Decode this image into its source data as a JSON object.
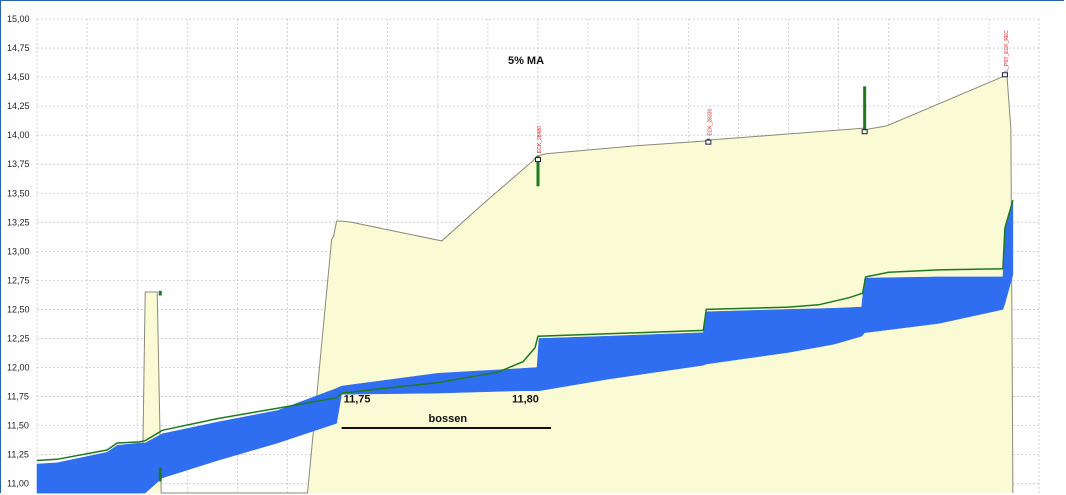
{
  "chart_data": {
    "type": "area",
    "title": "5% MA",
    "xlabel": "",
    "ylabel": "",
    "xlim": [
      0,
      100
    ],
    "ylim": [
      10.92,
      15.0
    ],
    "y_ticks": [
      "15,00",
      "14,75",
      "14,50",
      "14,25",
      "14,00",
      "13,75",
      "13,50",
      "13,25",
      "13,00",
      "12,75",
      "12,50",
      "12,25",
      "12,00",
      "11,75",
      "11,50",
      "11,25",
      "11,00"
    ],
    "y_tick_values": [
      15.0,
      14.75,
      14.5,
      14.25,
      14.0,
      13.75,
      13.5,
      13.25,
      13.0,
      12.75,
      12.5,
      12.25,
      12.0,
      11.75,
      11.5,
      11.25,
      11.0
    ],
    "grid": true,
    "colors": {
      "ground_fill": "#fafad4",
      "ground_line": "#8a8a7a",
      "water_fill": "#2f6ef0",
      "energy_line": "#1f7a1f",
      "grid": "#c8c8c8",
      "marker_label": "#e01818"
    },
    "series": [
      {
        "kind": "ground-profile",
        "x": [
          0,
          7.8,
          8.2,
          10.5,
          10.8,
          12.0,
          12.4,
          27.0,
          29.4,
          29.6,
          29.9,
          30.4,
          31.4,
          40.4,
          44.4,
          49.5,
          49.9,
          50.8,
          60.0,
          66.7,
          67.4,
          72.0,
          82.4,
          82.8,
          84.8,
          96.3,
          96.8,
          97.2,
          97.4
        ],
        "y": [
          10.92,
          10.92,
          10.92,
          10.92,
          12.65,
          12.65,
          10.92,
          10.92,
          13.1,
          13.13,
          13.26,
          13.26,
          13.25,
          13.09,
          13.4,
          13.78,
          13.82,
          13.84,
          13.91,
          13.95,
          13.96,
          13.99,
          14.06,
          14.05,
          14.08,
          14.5,
          14.52,
          14.05,
          10.92
        ]
      },
      {
        "kind": "water-top",
        "x": [
          0,
          2.0,
          7.0,
          8.0,
          10.2,
          10.8,
          12.5,
          18.0,
          24.0,
          29.9,
          30.4,
          40.0,
          48.0,
          49.9,
          50.1,
          57.0,
          66.5,
          66.8,
          75.0,
          79.5,
          82.3,
          82.6,
          90.0,
          96.4,
          96.6,
          97.4
        ],
        "y": [
          11.17,
          11.18,
          11.27,
          11.33,
          11.35,
          11.35,
          11.43,
          11.53,
          11.63,
          11.82,
          11.84,
          11.95,
          11.99,
          12.0,
          12.25,
          12.27,
          12.3,
          12.48,
          12.5,
          12.51,
          12.52,
          12.77,
          12.78,
          12.78,
          13.2,
          13.44
        ]
      },
      {
        "kind": "water-bottom",
        "x": [
          0,
          10.8,
          12.5,
          18.0,
          24.0,
          29.9,
          30.4,
          40.0,
          48.0,
          49.9,
          50.1,
          57.0,
          66.5,
          66.8,
          75.0,
          79.5,
          82.3,
          82.6,
          90.0,
          96.4,
          96.6,
          97.4
        ],
        "y": [
          10.92,
          10.92,
          11.05,
          11.2,
          11.35,
          11.52,
          11.77,
          11.78,
          11.8,
          11.8,
          11.8,
          11.9,
          12.02,
          12.03,
          12.13,
          12.2,
          12.27,
          12.3,
          12.38,
          12.5,
          12.55,
          12.8
        ]
      },
      {
        "kind": "energy-line",
        "x": [
          0,
          2.0,
          7.0,
          8.0,
          10.2,
          10.8,
          12.5,
          18.0,
          24.0,
          29.9,
          30.4,
          40.0,
          46.0,
          48.5,
          49.7,
          50.0,
          57.0,
          66.5,
          66.8,
          75.0,
          78.0,
          81.0,
          82.4,
          82.7,
          85.0,
          90.0,
          96.4,
          96.6,
          97.4
        ],
        "y": [
          11.2,
          11.21,
          11.29,
          11.35,
          11.36,
          11.37,
          11.46,
          11.56,
          11.65,
          11.74,
          11.78,
          11.87,
          11.96,
          12.05,
          12.17,
          12.27,
          12.29,
          12.32,
          12.5,
          12.52,
          12.54,
          12.6,
          12.64,
          12.78,
          12.82,
          12.84,
          12.85,
          13.2,
          13.44
        ]
      }
    ],
    "markers": [
      {
        "x": 50.0,
        "y_bottom": 13.56,
        "y_top": 13.82,
        "box_y": 13.79,
        "label": "ECK_28480"
      },
      {
        "x": 67.0,
        "y_bottom": 13.92,
        "y_top": 13.97,
        "box_y": 13.94,
        "label": "ECK_28330"
      },
      {
        "x": 82.6,
        "y_bottom": 14.02,
        "y_top": 14.42,
        "box_y": 14.03,
        "label": ""
      },
      {
        "x": 96.6,
        "y_bottom": 14.52,
        "y_top": 14.52,
        "box_y": 14.52,
        "label": "L_PST_ECK_REC"
      }
    ],
    "annotations": [
      {
        "text": "11,75",
        "x": 30.6,
        "y": 11.7,
        "kind": "value"
      },
      {
        "text": "11,80",
        "x": 47.4,
        "y": 11.7,
        "kind": "value"
      },
      {
        "text": "bossen",
        "x": 41.0,
        "y": 11.53,
        "kind": "label",
        "bar_x": [
          30.4,
          51.3
        ],
        "bar_y": 11.48
      }
    ],
    "small_markers": [
      {
        "x": 12.3,
        "y_bottom": 12.62,
        "y_top": 12.66
      },
      {
        "x": 12.3,
        "y_bottom": 11.02,
        "y_top": 11.14
      }
    ]
  }
}
